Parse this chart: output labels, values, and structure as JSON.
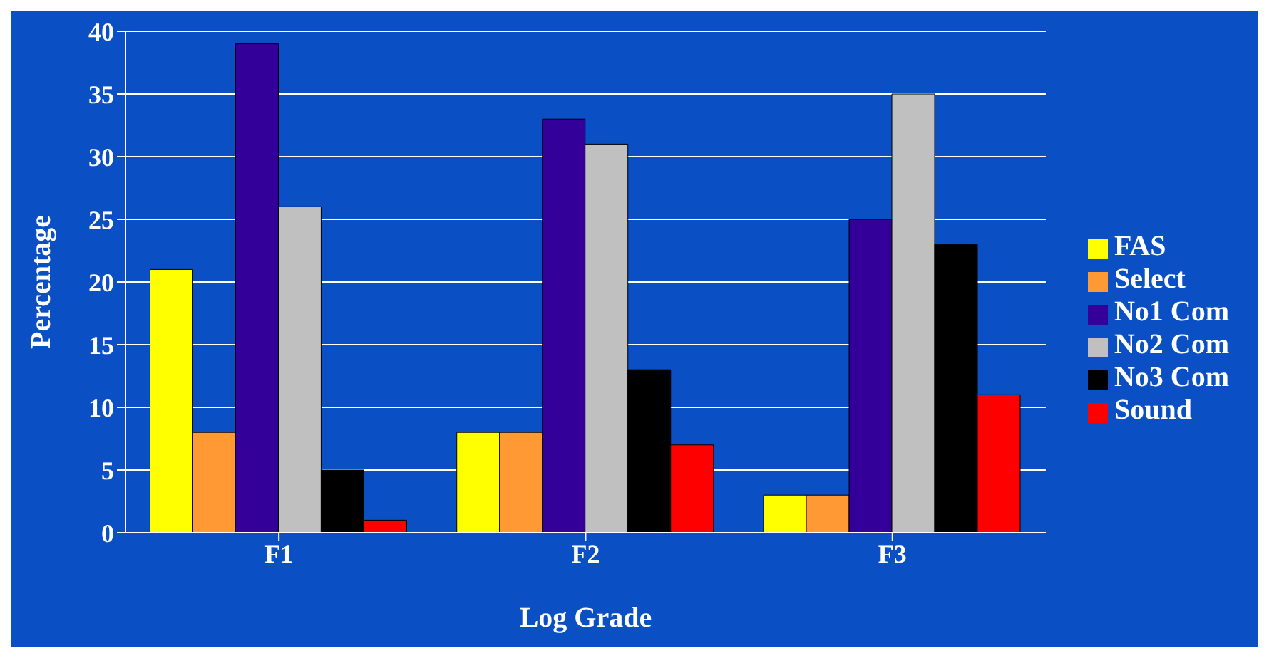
{
  "chart_data": {
    "type": "bar",
    "xlabel": "Log Grade",
    "ylabel": "Percentage",
    "categories": [
      "F1",
      "F2",
      "F3"
    ],
    "series": [
      {
        "name": "FAS",
        "color": "#ffff00",
        "values": [
          21,
          8,
          3
        ]
      },
      {
        "name": "Select",
        "color": "#ff9933",
        "values": [
          8,
          8,
          3
        ]
      },
      {
        "name": "No1 Com",
        "color": "#330099",
        "values": [
          39,
          33,
          25
        ]
      },
      {
        "name": "No2 Com",
        "color": "#c0c0c0",
        "values": [
          26,
          31,
          35
        ]
      },
      {
        "name": "No3 Com",
        "color": "#000000",
        "values": [
          5,
          13,
          23
        ]
      },
      {
        "name": "Sound",
        "color": "#ff0000",
        "values": [
          1,
          7,
          11
        ]
      }
    ],
    "ylim": [
      0,
      40
    ],
    "yticks": [
      0,
      5,
      10,
      15,
      20,
      25,
      30,
      35,
      40
    ],
    "grid": "y",
    "legend": "right"
  }
}
